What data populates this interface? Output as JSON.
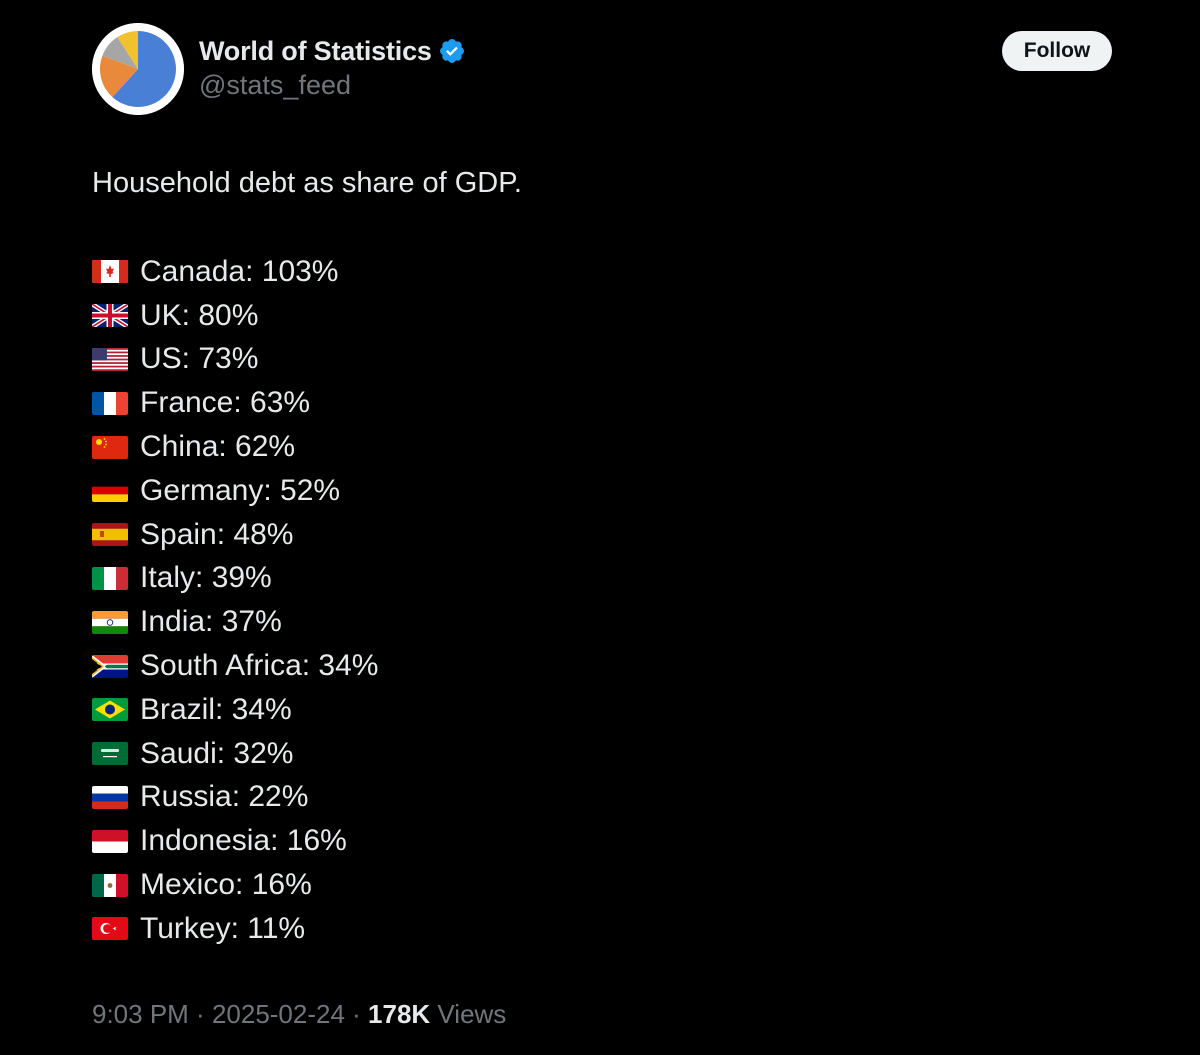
{
  "author": {
    "display_name": "World of Statistics",
    "handle": "@stats_feed",
    "verified": true,
    "avatar_icon": "pie-chart-logo"
  },
  "follow_label": "Follow",
  "post": {
    "title": "Household debt as share of GDP.",
    "entries": [
      {
        "flag": "flag-canada",
        "text": "Canada: 103%"
      },
      {
        "flag": "flag-uk",
        "text": "UK: 80%"
      },
      {
        "flag": "flag-us",
        "text": "US: 73%"
      },
      {
        "flag": "flag-france",
        "text": "France: 63%"
      },
      {
        "flag": "flag-china",
        "text": "China: 62%"
      },
      {
        "flag": "flag-germany",
        "text": "Germany: 52%"
      },
      {
        "flag": "flag-spain",
        "text": "Spain: 48%"
      },
      {
        "flag": "flag-italy",
        "text": "Italy: 39%"
      },
      {
        "flag": "flag-india",
        "text": "India: 37%"
      },
      {
        "flag": "flag-south-africa",
        "text": "South Africa: 34%"
      },
      {
        "flag": "flag-brazil",
        "text": "Brazil: 34%"
      },
      {
        "flag": "flag-saudi",
        "text": "Saudi: 32%"
      },
      {
        "flag": "flag-russia",
        "text": "Russia: 22%"
      },
      {
        "flag": "flag-indonesia",
        "text": "Indonesia: 16%"
      },
      {
        "flag": "flag-mexico",
        "text": "Mexico: 16%"
      },
      {
        "flag": "flag-turkey",
        "text": "Turkey: 11%"
      }
    ]
  },
  "meta": {
    "time": "9:03 PM",
    "separator": " · ",
    "date": "2025-02-24",
    "views_count": "178K",
    "views_label": " Views"
  },
  "colors": {
    "background": "#000000",
    "text": "#e7e9ea",
    "secondary_text": "#71767b",
    "verified_badge": "#1d9bf0"
  }
}
